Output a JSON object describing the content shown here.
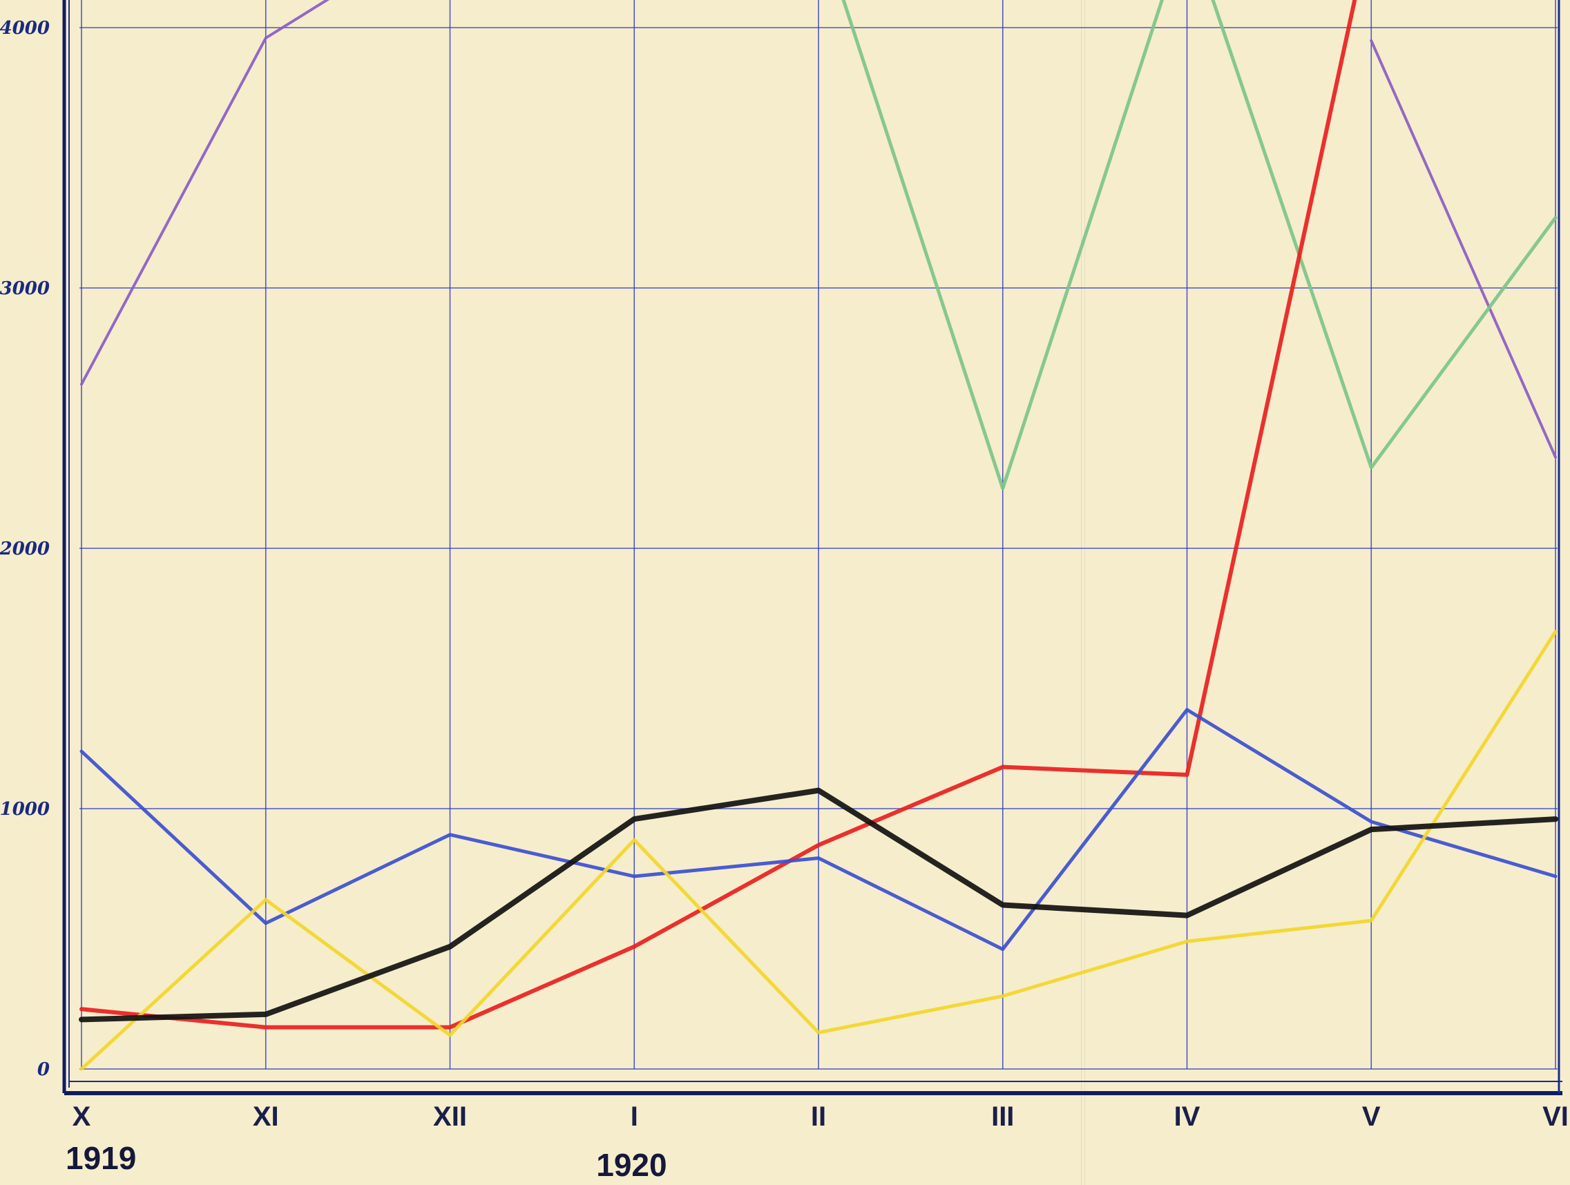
{
  "chart_data": {
    "type": "line",
    "title": "",
    "xlabel": "",
    "ylabel": "",
    "categories": [
      "X",
      "XI",
      "XII",
      "I",
      "II",
      "III",
      "IV",
      "V",
      "VI"
    ],
    "year_labels": [
      {
        "text": "1919",
        "at": "X"
      },
      {
        "text": "1920",
        "at": "I"
      }
    ],
    "yticks": [
      0,
      1000,
      2000,
      3000,
      4000
    ],
    "ytick_labels": [
      "0",
      "1000",
      "2000",
      "3000",
      "4000"
    ],
    "ylim": [
      0,
      4000
    ],
    "grid": true,
    "legend": "none",
    "series": [
      {
        "color": "#8a5cc4",
        "width": 4,
        "values": [
          2630,
          3960,
          4400,
          null,
          null,
          null,
          null,
          3950,
          2350
        ]
      },
      {
        "color": "#7cc48a",
        "width": 5,
        "values": [
          null,
          null,
          null,
          null,
          4400,
          2230,
          4400,
          2310,
          3270
        ]
      },
      {
        "color": "#e82020",
        "width": 6,
        "values": [
          230,
          160,
          160,
          470,
          860,
          1160,
          1130,
          4400,
          null
        ]
      },
      {
        "color": "#3b4fd0",
        "width": 5,
        "values": [
          1220,
          560,
          900,
          740,
          810,
          460,
          1380,
          950,
          740
        ]
      },
      {
        "color": "#f2d62a",
        "width": 5,
        "values": [
          0,
          650,
          130,
          880,
          140,
          280,
          490,
          570,
          1680
        ]
      },
      {
        "color": "#111111",
        "width": 8,
        "values": [
          190,
          210,
          470,
          960,
          1070,
          630,
          590,
          920,
          960
        ]
      }
    ]
  }
}
